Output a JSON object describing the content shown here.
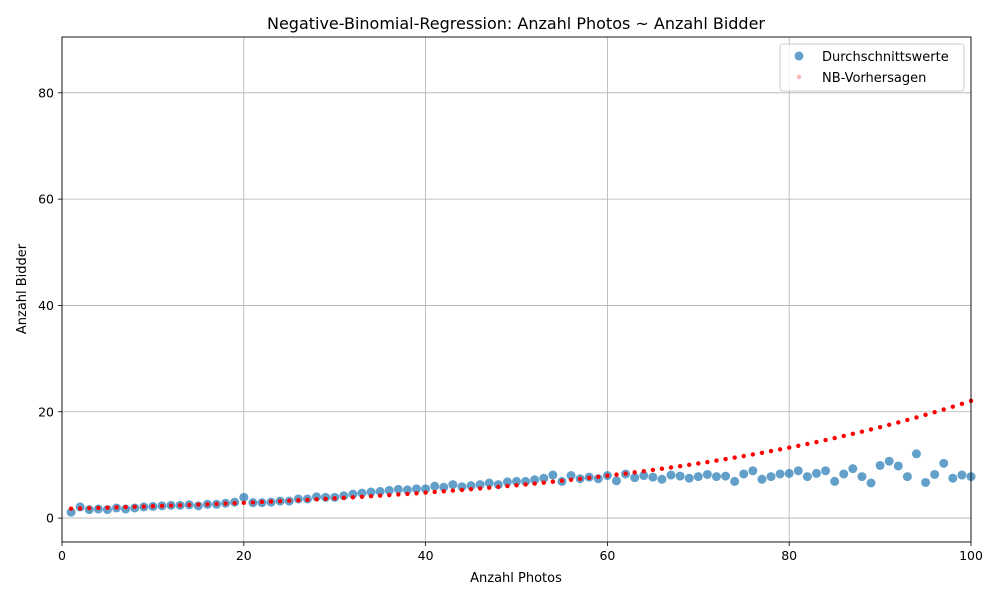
{
  "chart_data": {
    "type": "scatter",
    "title": "Negative-Binomial-Regression: Anzahl Photos ~ Anzahl Bidder",
    "xlabel": "Anzahl Photos",
    "ylabel": "Anzahl Bidder",
    "xlim": [
      0,
      100
    ],
    "ylim": [
      -4.5,
      90.5
    ],
    "xticks": [
      0,
      20,
      40,
      60,
      80,
      100
    ],
    "yticks": [
      0,
      20,
      40,
      60,
      80
    ],
    "grid": true,
    "legend_position": "top-right",
    "series": [
      {
        "name": "Durchschnittswerte",
        "color": "#1f77b4",
        "x": [
          1,
          2,
          3,
          4,
          5,
          6,
          7,
          8,
          9,
          10,
          11,
          12,
          13,
          14,
          15,
          16,
          17,
          18,
          19,
          20,
          21,
          22,
          23,
          24,
          25,
          26,
          27,
          28,
          29,
          30,
          31,
          32,
          33,
          34,
          35,
          36,
          37,
          38,
          39,
          40,
          41,
          42,
          43,
          44,
          45,
          46,
          47,
          48,
          49,
          50,
          51,
          52,
          53,
          54,
          55,
          56,
          57,
          58,
          59,
          60,
          61,
          62,
          63,
          64,
          65,
          66,
          67,
          68,
          69,
          70,
          71,
          72,
          73,
          74,
          75,
          76,
          77,
          78,
          79,
          80,
          81,
          82,
          83,
          84,
          85,
          86,
          87,
          88,
          89,
          90,
          91,
          92,
          93,
          94,
          95,
          96,
          97,
          98,
          99,
          100
        ],
        "y": [
          1.1,
          2.1,
          1.6,
          1.7,
          1.6,
          1.9,
          1.7,
          1.9,
          2.1,
          2.2,
          2.3,
          2.4,
          2.4,
          2.5,
          2.3,
          2.6,
          2.6,
          2.8,
          3.0,
          3.9,
          2.9,
          2.9,
          3.0,
          3.2,
          3.2,
          3.6,
          3.6,
          4.0,
          3.9,
          3.9,
          4.2,
          4.5,
          4.7,
          4.9,
          5.0,
          5.2,
          5.4,
          5.3,
          5.5,
          5.5,
          6.0,
          5.8,
          6.3,
          5.9,
          6.1,
          6.3,
          6.6,
          6.3,
          6.8,
          6.9,
          6.9,
          7.2,
          7.5,
          8.1,
          6.9,
          8.0,
          7.4,
          7.7,
          7.4,
          8.0,
          7.0,
          8.3,
          7.6,
          8.0,
          7.7,
          7.3,
          8.1,
          7.9,
          7.5,
          7.8,
          8.2,
          7.8,
          7.9,
          6.9,
          8.3,
          8.9,
          7.3,
          7.8,
          8.3,
          8.4,
          8.9,
          7.8,
          8.4,
          8.9,
          6.9,
          8.3,
          9.3,
          7.8,
          6.6,
          9.9,
          10.7,
          9.8,
          7.8,
          12.1,
          6.7,
          8.2,
          10.3,
          7.5,
          8.1,
          7.8
        ]
      },
      {
        "name": "NB-Vorhersagen",
        "color": "#ff0000",
        "start": 1,
        "end": 100,
        "intercept": 0.5477,
        "slope": 0.02546
      }
    ]
  }
}
